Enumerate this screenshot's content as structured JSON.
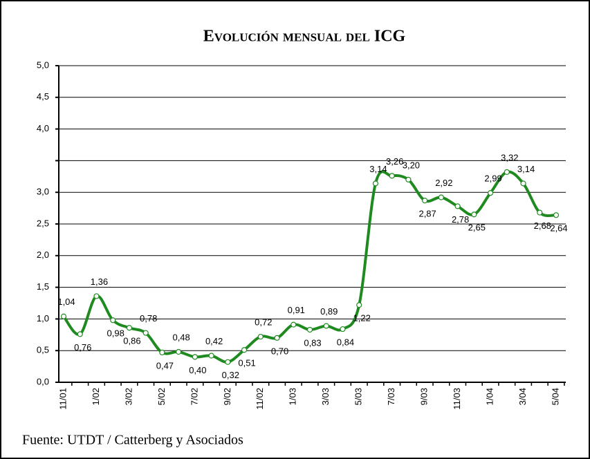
{
  "chart_data": {
    "type": "line",
    "title": "Evolución mensual del ICG",
    "source": "Fuente: UTDT / Catterberg y Asociados",
    "categories": [
      "11/01",
      null,
      "1/02",
      null,
      "3/02",
      null,
      "5/02",
      null,
      "7/02",
      null,
      "9/02",
      null,
      "11/02",
      null,
      "1/03",
      null,
      "3/03",
      null,
      "5/03",
      null,
      "7/03",
      null,
      "9/03",
      null,
      "11/03",
      null,
      "1/04",
      null,
      "3/04",
      null,
      "5/04"
    ],
    "series": [
      {
        "color": "#1f8a1f",
        "values": [
          1.04,
          0.76,
          1.36,
          0.98,
          0.86,
          0.78,
          0.47,
          0.48,
          0.4,
          0.42,
          0.32,
          0.51,
          0.72,
          0.7,
          0.91,
          0.83,
          0.89,
          0.84,
          1.22,
          3.14,
          3.26,
          3.2,
          2.87,
          2.92,
          2.78,
          2.65,
          2.99,
          3.32,
          3.14,
          2.68,
          2.64
        ],
        "value_labels": [
          "1,04",
          "0,76",
          "1,36",
          "0,98",
          "0,86",
          "0,78",
          "0,47",
          "0,48",
          "0,40",
          "0,42",
          "0,32",
          "0,51",
          "0,72",
          "0,70",
          "0,91",
          "0,83",
          "0,89",
          "0,84",
          "1,22",
          "3,14",
          "3,26",
          "3,20",
          "2,87",
          "2,92",
          "2,78",
          "2,65",
          "2,99",
          "3,32",
          "3,14",
          "2,68",
          "2,64"
        ]
      }
    ],
    "ylim": [
      0,
      5
    ],
    "yticks": [
      {
        "value": 0,
        "label": "0,0"
      },
      {
        "value": 0.5,
        "label": "0,5"
      },
      {
        "value": 1,
        "label": "1,0"
      },
      {
        "value": 1.5,
        "label": "1,5"
      },
      {
        "value": 2,
        "label": "2,0"
      },
      {
        "value": 2.5,
        "label": "2,5"
      },
      {
        "value": 3,
        "label": "3,0"
      },
      {
        "value": 3.5,
        "label": null
      },
      {
        "value": 4,
        "label": "4,0"
      },
      {
        "value": 4.5,
        "label": "4,5"
      },
      {
        "value": 5,
        "label": "5,0"
      }
    ],
    "grid": true
  }
}
